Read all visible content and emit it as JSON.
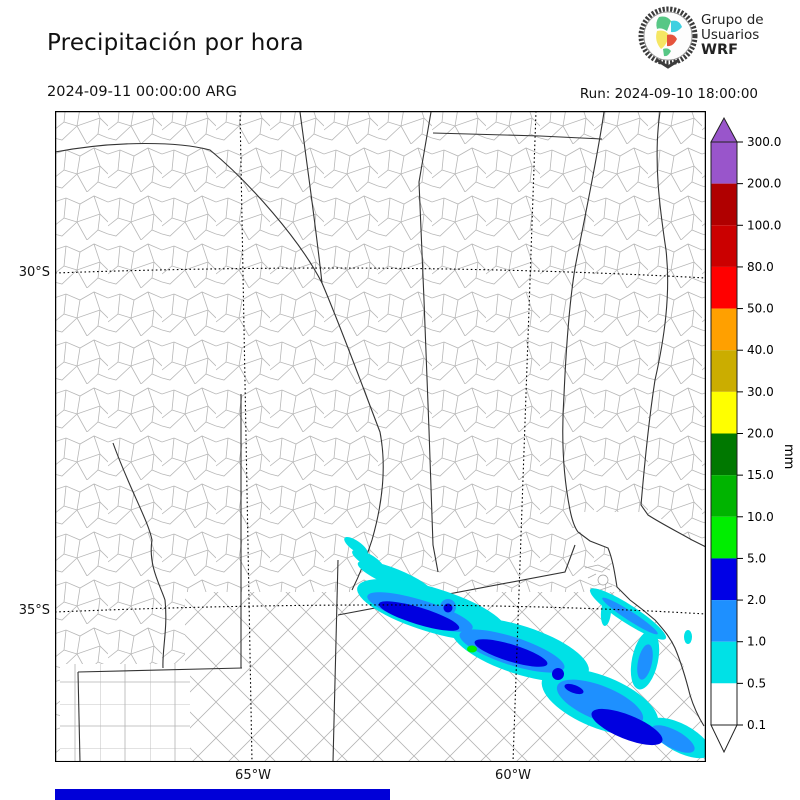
{
  "header": {
    "title": "Precipitación por hora",
    "valid_time": "2024-09-11 00:00:00 ARG",
    "run_label": "Run: 2024-09-10 18:00:00",
    "logo": {
      "line1": "Grupo de",
      "line2": "Usuarios",
      "line3": "WRF"
    }
  },
  "map": {
    "lat_labels": [
      {
        "text": "30°S"
      },
      {
        "text": "35°S"
      }
    ],
    "lon_labels": [
      {
        "text": "65°W"
      },
      {
        "text": "60°W"
      }
    ]
  },
  "colorbar": {
    "unit": "mm",
    "tick_labels": [
      "300.0",
      "200.0",
      "100.0",
      "80.0",
      "50.0",
      "40.0",
      "30.0",
      "20.0",
      "15.0",
      "10.0",
      "5.0",
      "2.0",
      "1.0",
      "0.5",
      "0.1"
    ],
    "tick_values": [
      300.0,
      200.0,
      100.0,
      80.0,
      50.0,
      40.0,
      30.0,
      20.0,
      15.0,
      10.0,
      5.0,
      2.0,
      1.0,
      0.5,
      0.1
    ],
    "segment_colors_top_to_bottom": [
      "#9955CB",
      "#B00000",
      "#CB0000",
      "#FF0000",
      "#FFA000",
      "#CBAD00",
      "#FFFF00",
      "#007800",
      "#00B400",
      "#00EE00",
      "#0000E6",
      "#1E90FF",
      "#00E1E6",
      "#FFFFFF"
    ],
    "over_color": "#9955CB",
    "under_color": "#FFFFFF"
  },
  "palette": {
    "cyan": "#00E1E6",
    "dodger": "#1E90FF",
    "blue": "#0000E0",
    "green": "#00EE00"
  },
  "progress_bar": {
    "color": "#0000D8"
  }
}
